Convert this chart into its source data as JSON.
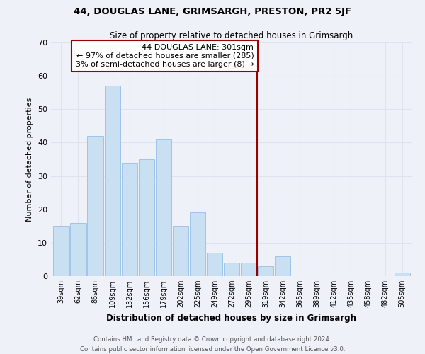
{
  "title": "44, DOUGLAS LANE, GRIMSARGH, PRESTON, PR2 5JF",
  "subtitle": "Size of property relative to detached houses in Grimsargh",
  "xlabel": "Distribution of detached houses by size in Grimsargh",
  "ylabel": "Number of detached properties",
  "bar_labels": [
    "39sqm",
    "62sqm",
    "86sqm",
    "109sqm",
    "132sqm",
    "156sqm",
    "179sqm",
    "202sqm",
    "225sqm",
    "249sqm",
    "272sqm",
    "295sqm",
    "319sqm",
    "342sqm",
    "365sqm",
    "389sqm",
    "412sqm",
    "435sqm",
    "458sqm",
    "482sqm",
    "505sqm"
  ],
  "bar_values": [
    15,
    16,
    42,
    57,
    34,
    35,
    41,
    15,
    19,
    7,
    4,
    4,
    3,
    6,
    0,
    0,
    0,
    0,
    0,
    0,
    1
  ],
  "bar_color": "#c9dff2",
  "bar_edge_color": "#a0c4e8",
  "ylim": [
    0,
    70
  ],
  "yticks": [
    0,
    10,
    20,
    30,
    40,
    50,
    60,
    70
  ],
  "vline_x": 11.5,
  "vline_color": "#990000",
  "annotation_title": "44 DOUGLAS LANE: 301sqm",
  "annotation_line1": "← 97% of detached houses are smaller (285)",
  "annotation_line2": "3% of semi-detached houses are larger (8) →",
  "footer1": "Contains HM Land Registry data © Crown copyright and database right 2024.",
  "footer2": "Contains public sector information licensed under the Open Government Licence v3.0.",
  "background_color": "#eef2f8",
  "grid_color": "#dde4ee"
}
